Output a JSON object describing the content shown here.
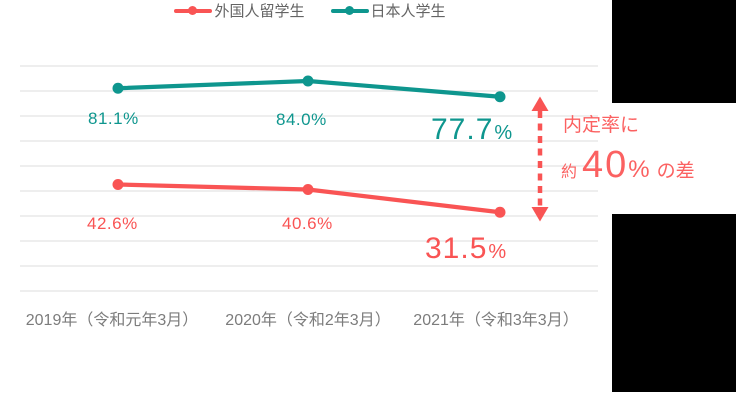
{
  "chart_data": {
    "type": "line",
    "title": "",
    "categories": [
      "2019年（令和元年3月）",
      "2020年（令和2年3月）",
      "2021年（令和3年3月）"
    ],
    "series": [
      {
        "name": "外国人留学生",
        "color": "#F95454",
        "values": [
          42.6,
          40.6,
          31.5
        ],
        "value_labels": [
          "42.6%",
          "40.6%"
        ],
        "big_label": {
          "num": "31.5",
          "unit": "%"
        }
      },
      {
        "name": "日本人学生",
        "color": "#0E968E",
        "values": [
          81.1,
          84.0,
          77.7
        ],
        "value_labels": [
          "81.1%",
          "84.0%"
        ],
        "big_label": {
          "num": "77.7",
          "unit": "%"
        }
      }
    ],
    "ylim": [
      0,
      100
    ],
    "grid": {
      "from": 0,
      "to": 90,
      "step": 10,
      "color": "#E8E8E8"
    },
    "legend_position": "bottom",
    "annotation": {
      "line1": "内定率に",
      "prefix": "約",
      "big": "40",
      "unit": "%",
      "suffix": "の差",
      "color": "#FB6161",
      "arrow_color": "#F95454",
      "arrow": "vertical-double-headed-dashed"
    }
  }
}
